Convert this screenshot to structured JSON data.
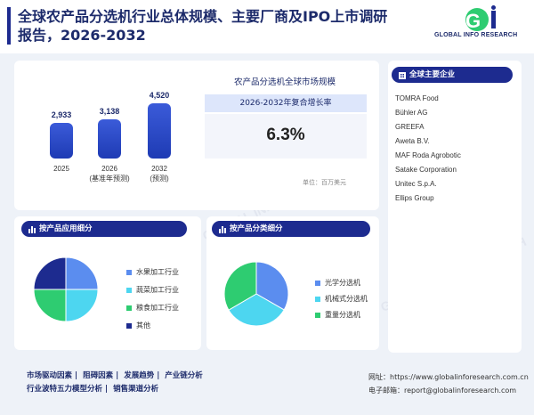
{
  "header": {
    "title": "全球农产品分选机行业总体规模、主要厂商及IPO上市调研报告，2026-2032",
    "logo_text": "GLOBAL INFO RESEARCH"
  },
  "market": {
    "bars": [
      {
        "value": "2,933",
        "year": "2025",
        "note": ""
      },
      {
        "value": "3,138",
        "year": "2026",
        "note": "(基准年预测)"
      },
      {
        "value": "4,520",
        "year": "2032",
        "note": "(预测)"
      }
    ],
    "title": "农产品分选机全球市场规模",
    "cagr_label": "2026-2032年复合增长率",
    "cagr_value": "6.3%",
    "unit": "单位：百万美元"
  },
  "companies": {
    "title": "全球主要企业",
    "list": [
      "TOMRA Food",
      "Bühler AG",
      "GREEFA",
      "Aweta B.V.",
      "MAF Roda Agrobotic",
      "Satake Corporation",
      "Unitec S.p.A.",
      "Ellips Group"
    ]
  },
  "application": {
    "title": "按产品应用细分",
    "legend": [
      "水果加工行业",
      "蔬菜加工行业",
      "粮食加工行业",
      "其他"
    ],
    "colors": [
      "#5b8def",
      "#4dd6f0",
      "#2ecc71",
      "#1d2b8f"
    ],
    "shares": [
      0.25,
      0.25,
      0.25,
      0.25
    ]
  },
  "type": {
    "title": "按产品分类细分",
    "legend": [
      "光学分选机",
      "机械式分选机",
      "重量分选机"
    ],
    "colors": [
      "#5b8def",
      "#4dd6f0",
      "#2ecc71"
    ],
    "shares": [
      0.333,
      0.333,
      0.334
    ]
  },
  "footer": {
    "links_row1": [
      "市场驱动因素",
      "阻碍因素",
      "发展趋势",
      "产业链分析"
    ],
    "links_row2": [
      "行业波特五力模型分析",
      "销售渠道分析"
    ],
    "website_label": "网址：",
    "website": "https://www.globalinforesearch.com.cn",
    "email_label": "电子邮箱：",
    "email": "report@globalinforesearch.com"
  }
}
